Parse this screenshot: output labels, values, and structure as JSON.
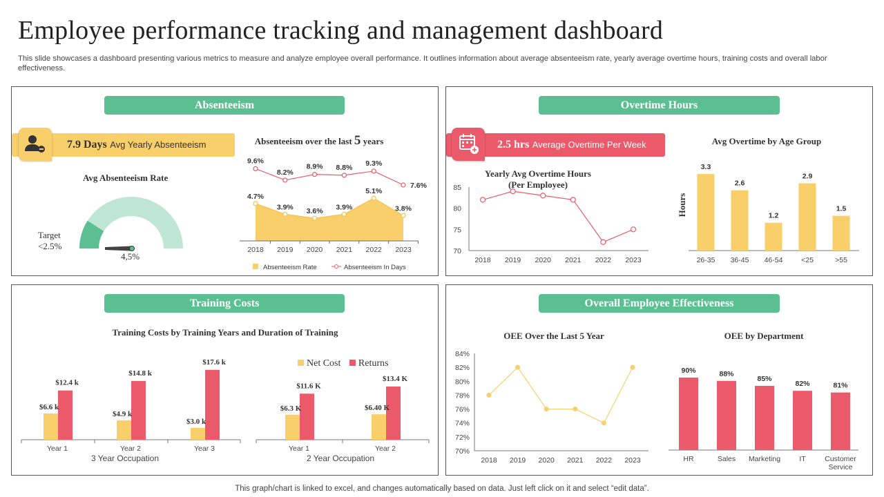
{
  "page": {
    "title": "Employee performance tracking and management dashboard",
    "subtitle": "This slide showcases a dashboard presenting various metrics to measure and analyze employee overall performance. It outlines information about average absenteeism rate, yearly average overtime hours, training costs and overall labor effectiveness.",
    "footer": "This graph/chart is linked to excel,  and changes automatically based on data. Just left click on it and select “edit data”."
  },
  "colors": {
    "green": "#5bbf92",
    "yellow": "#f8cf6a",
    "red": "#ea5a6a",
    "gauge": "#bfe6d4"
  },
  "absenteeism": {
    "panel_title": "Absenteeism",
    "kpi_value": "7.9 Days",
    "kpi_label": "Avg  Yearly Absenteeism",
    "gauge_title": "Avg Absenteeism Rate",
    "target_label": "Target",
    "target_value": "<2.5%",
    "gauge_value": "4,5%",
    "gauge_fraction": 0.045
  },
  "overtime": {
    "panel_title": "Overtime Hours",
    "kpi_value": "2.5 hrs",
    "kpi_label": "Average  Overtime  Per Week"
  },
  "training": {
    "panel_title": "Training Costs",
    "legend_net": "Net Cost",
    "legend_returns": "Returns"
  },
  "oee": {
    "panel_title": "Overall Employee Effectiveness"
  },
  "chart_data": [
    {
      "id": "absent5",
      "type": "line",
      "title_prefix": "Absenteeism over the last ",
      "title_num": "5",
      "title_suffix": " years",
      "x": [
        "2018",
        "2019",
        "2020",
        "2021",
        "2022",
        "2023"
      ],
      "series": [
        {
          "name": "Absenteeism Rate",
          "kind": "area",
          "values": [
            4.7,
            3.9,
            3.6,
            3.9,
            5.1,
            3.8
          ],
          "labels": [
            "4.7%",
            "3.9%",
            "3.6%",
            "3.9%",
            "5.1%",
            "3.8%"
          ]
        },
        {
          "name": "Absenteeism In Days",
          "kind": "line",
          "values": [
            9.6,
            8.2,
            8.9,
            8.8,
            9.3,
            7.6
          ],
          "labels": [
            "9.6%",
            "8.2%",
            "8.9%",
            "8.8%",
            "9.3%",
            "7.6%"
          ]
        }
      ]
    },
    {
      "id": "overtime_yearly",
      "type": "line",
      "title": "Yearly Avg Overtime Hours",
      "title2": "(Per Employee)",
      "x": [
        "2018",
        "2019",
        "2020",
        "2021",
        "2022",
        "2023"
      ],
      "values": [
        82,
        84,
        83,
        82,
        72,
        75
      ],
      "ylim": [
        70,
        85
      ],
      "yticks": [
        "70",
        "75",
        "80",
        "85"
      ]
    },
    {
      "id": "overtime_age",
      "type": "bar",
      "title": "Avg Overtime by Age Group",
      "ylabel": "Hours",
      "categories": [
        "26-35",
        "36-45",
        "46-54",
        "<25",
        ">55"
      ],
      "values": [
        3.3,
        2.6,
        1.2,
        2.9,
        1.5
      ],
      "labels": [
        "3.3",
        "2.6",
        "1.2",
        "2.9",
        "1.5"
      ]
    },
    {
      "id": "training3",
      "type": "bar",
      "title": "Training Costs by Training Years and Duration of Training",
      "group_label": "3 Year Occupation",
      "categories": [
        "Year 1",
        "Year 2",
        "Year 3"
      ],
      "series": [
        {
          "name": "Net Cost",
          "values": [
            6.6,
            4.9,
            3.0
          ],
          "labels": [
            "$6.6 k",
            "$4.9 k",
            "$3.0 k"
          ]
        },
        {
          "name": "Returns",
          "values": [
            12.4,
            14.8,
            17.6
          ],
          "labels": [
            "$12.4 k",
            "$14.8 k",
            "$17.6 k"
          ]
        }
      ]
    },
    {
      "id": "training2",
      "type": "bar",
      "group_label": "2 Year Occupation",
      "categories": [
        "Year 1",
        "Year 2"
      ],
      "series": [
        {
          "name": "Net Cost",
          "values": [
            6.3,
            6.4
          ],
          "labels": [
            "$6.3 K",
            "$6.40 K"
          ]
        },
        {
          "name": "Returns",
          "values": [
            11.6,
            13.4
          ],
          "labels": [
            "$11.6 K",
            "$13.4 K"
          ]
        }
      ]
    },
    {
      "id": "oee5",
      "type": "line",
      "title": "OEE Over the Last 5 Year",
      "x": [
        "2018",
        "2019",
        "2020",
        "2021",
        "2022",
        "2023"
      ],
      "values": [
        78,
        82,
        76,
        76,
        74,
        82
      ],
      "ylim": [
        70,
        84
      ],
      "yticks": [
        "70%",
        "72%",
        "74%",
        "76%",
        "78%",
        "80%",
        "82%",
        "84%"
      ]
    },
    {
      "id": "oee_dept",
      "type": "bar",
      "title": "OEE by Department",
      "categories": [
        "HR",
        "Sales",
        "Marketing",
        "IT",
        "Customer Service"
      ],
      "values": [
        90,
        88,
        85,
        82,
        81
      ],
      "labels": [
        "90%",
        "88%",
        "85%",
        "82%",
        "81%"
      ]
    }
  ]
}
